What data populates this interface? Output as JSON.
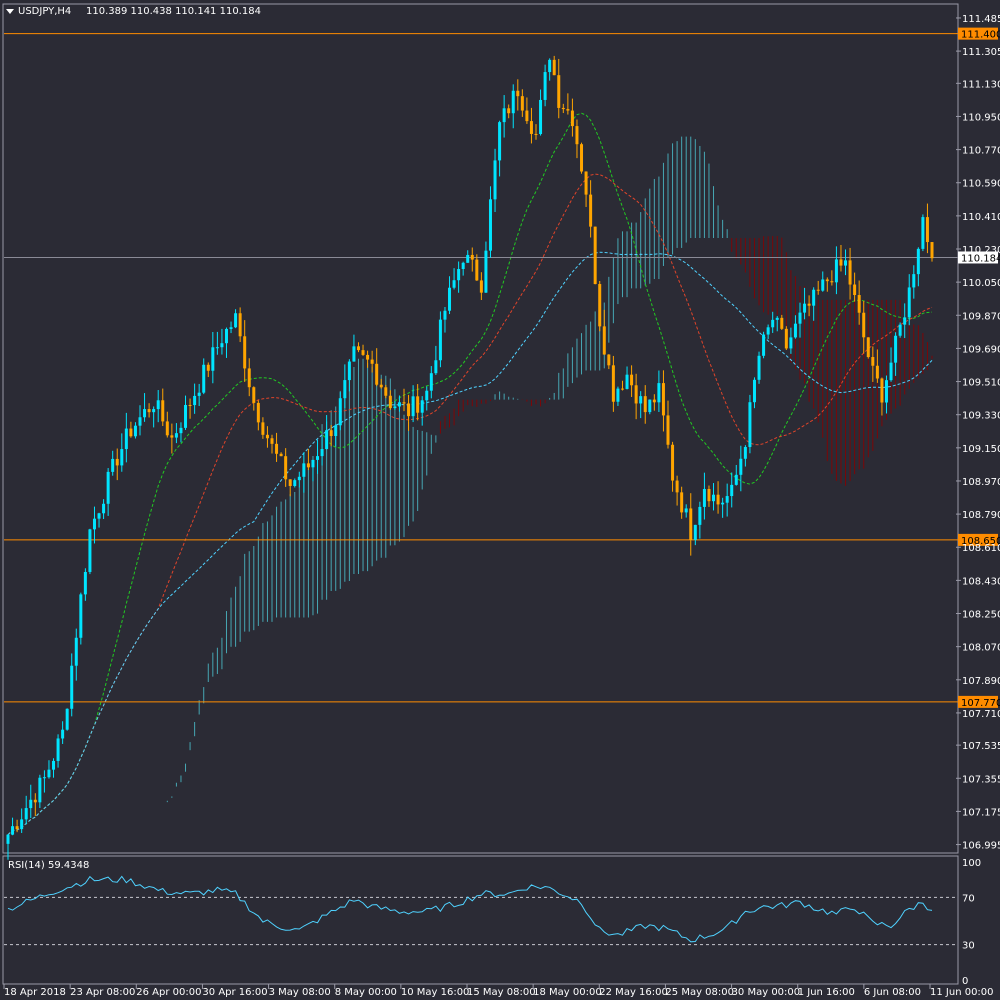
{
  "header": {
    "symbol": "USDJPY,H4",
    "ohlc": "110.389 110.438 110.141 110.184"
  },
  "rsi": {
    "label": "RSI(14) 59.4348",
    "levels": [
      "100",
      "70",
      "30",
      "0"
    ]
  },
  "colors": {
    "background": "#2b2b35",
    "bull": "#00e5ff",
    "bear": "#ffa500",
    "level_line": "#ff8c00",
    "cloud_bull": "#4bbcc9",
    "cloud_bear": "#8b0000",
    "ma_green": "#22c922",
    "ma_red": "#e0442a",
    "ma_cyan": "#4fd2ff",
    "rsi_line": "#4fd2ff"
  },
  "chart_data": {
    "type": "candlestick",
    "symbol": "USDJPY",
    "timeframe": "H4",
    "ylim": [
      106.96,
      111.55
    ],
    "y_ticks": [
      "111.485",
      "111.305",
      "111.130",
      "110.950",
      "110.770",
      "110.590",
      "110.410",
      "110.230",
      "110.050",
      "109.870",
      "109.690",
      "109.510",
      "109.330",
      "109.150",
      "108.970",
      "108.790",
      "108.610",
      "108.430",
      "108.250",
      "108.070",
      "107.890",
      "107.710",
      "107.535",
      "107.355",
      "107.175",
      "106.995"
    ],
    "x_ticks": [
      "18 Apr 2018",
      "23 Apr 08:00",
      "26 Apr 00:00",
      "30 Apr 16:00",
      "3 May 08:00",
      "8 May 00:00",
      "10 May 16:00",
      "15 May 08:00",
      "18 May 00:00",
      "22 May 16:00",
      "25 May 08:00",
      "30 May 00:00",
      "1 Jun 16:00",
      "6 Jun 08:00",
      "11 Jun 00:00"
    ],
    "levels": [
      {
        "value": 111.4,
        "label": "111.400"
      },
      {
        "value": 108.65,
        "label": "108.650"
      },
      {
        "value": 107.77,
        "label": "107.770"
      }
    ],
    "current_price": {
      "value": 110.184,
      "label": "110.184"
    },
    "close_keypoints": [
      [
        0,
        107.05
      ],
      [
        8,
        107.35
      ],
      [
        12,
        107.6
      ],
      [
        18,
        108.7
      ],
      [
        24,
        109.1
      ],
      [
        27,
        109.25
      ],
      [
        32,
        109.4
      ],
      [
        36,
        109.2
      ],
      [
        42,
        109.5
      ],
      [
        47,
        109.75
      ],
      [
        50,
        109.85
      ],
      [
        54,
        109.4
      ],
      [
        58,
        109.15
      ],
      [
        62,
        108.95
      ],
      [
        66,
        109.05
      ],
      [
        72,
        109.3
      ],
      [
        76,
        109.65
      ],
      [
        80,
        109.6
      ],
      [
        84,
        109.4
      ],
      [
        88,
        109.35
      ],
      [
        92,
        109.45
      ],
      [
        96,
        109.9
      ],
      [
        100,
        110.2
      ],
      [
        104,
        110.05
      ],
      [
        108,
        110.9
      ],
      [
        112,
        111.1
      ],
      [
        116,
        110.85
      ],
      [
        119,
        111.3
      ],
      [
        121,
        111.05
      ],
      [
        124,
        110.95
      ],
      [
        127,
        110.55
      ],
      [
        130,
        109.85
      ],
      [
        133,
        109.45
      ],
      [
        136,
        109.55
      ],
      [
        140,
        109.35
      ],
      [
        143,
        109.45
      ],
      [
        146,
        109.0
      ],
      [
        150,
        108.7
      ],
      [
        153,
        108.95
      ],
      [
        156,
        108.85
      ],
      [
        159,
        108.9
      ],
      [
        162,
        109.2
      ],
      [
        165,
        109.65
      ],
      [
        168,
        109.85
      ],
      [
        171,
        109.7
      ],
      [
        174,
        109.85
      ],
      [
        177,
        109.95
      ],
      [
        181,
        110.1
      ],
      [
        184,
        110.15
      ],
      [
        187,
        109.85
      ],
      [
        190,
        109.55
      ],
      [
        192,
        109.45
      ],
      [
        195,
        109.7
      ],
      [
        198,
        110.0
      ],
      [
        201,
        110.4
      ],
      [
        203,
        110.18
      ]
    ],
    "rsi_keypoints": [
      [
        0,
        60
      ],
      [
        10,
        75
      ],
      [
        18,
        85
      ],
      [
        26,
        85
      ],
      [
        34,
        75
      ],
      [
        40,
        73
      ],
      [
        46,
        76
      ],
      [
        50,
        73
      ],
      [
        56,
        50
      ],
      [
        60,
        45
      ],
      [
        64,
        42
      ],
      [
        70,
        55
      ],
      [
        76,
        68
      ],
      [
        80,
        62
      ],
      [
        86,
        58
      ],
      [
        92,
        58
      ],
      [
        98,
        64
      ],
      [
        104,
        73
      ],
      [
        110,
        73
      ],
      [
        114,
        79
      ],
      [
        118,
        79
      ],
      [
        122,
        73
      ],
      [
        126,
        66
      ],
      [
        130,
        42
      ],
      [
        134,
        38
      ],
      [
        140,
        46
      ],
      [
        144,
        44
      ],
      [
        150,
        34
      ],
      [
        154,
        38
      ],
      [
        158,
        44
      ],
      [
        162,
        58
      ],
      [
        166,
        62
      ],
      [
        170,
        63
      ],
      [
        174,
        66
      ],
      [
        178,
        60
      ],
      [
        182,
        56
      ],
      [
        186,
        62
      ],
      [
        190,
        48
      ],
      [
        194,
        46
      ],
      [
        198,
        60
      ],
      [
        201,
        66
      ],
      [
        203,
        59
      ]
    ]
  }
}
